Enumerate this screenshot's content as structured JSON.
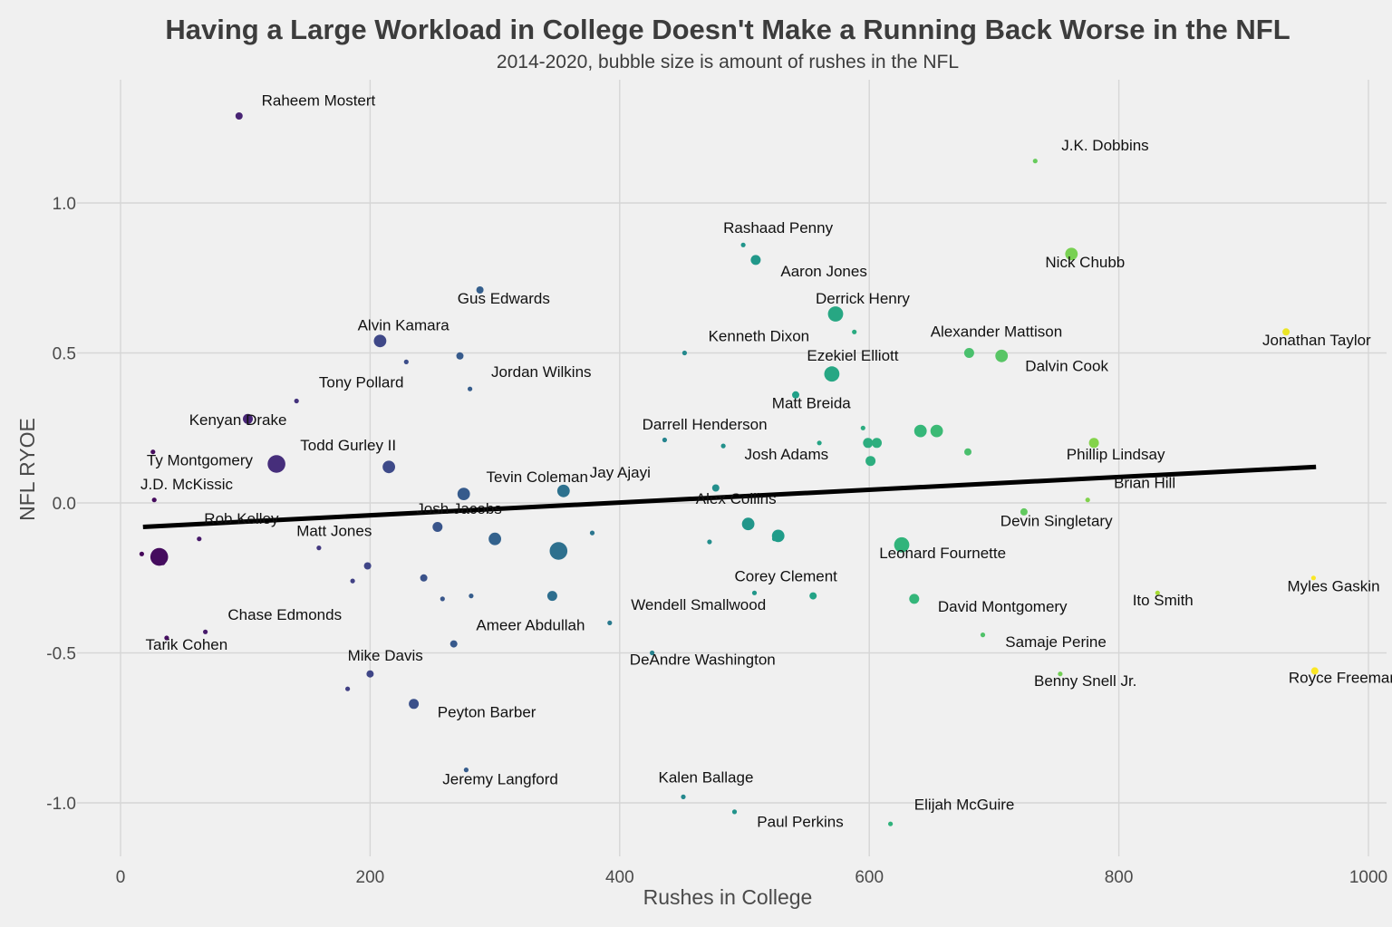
{
  "chart_data": {
    "type": "scatter",
    "title": "Having a Large Workload in College Doesn't Make a Running Back Worse in the NFL",
    "subtitle": "2014-2020, bubble size is amount of rushes in the NFL",
    "xlabel": "Rushes in College",
    "ylabel": "NFL RYOE",
    "xlim": [
      -20,
      1000
    ],
    "ylim": [
      -1.18,
      1.4
    ],
    "x_ticks": [
      0,
      200,
      400,
      600,
      800,
      1000
    ],
    "x_tick_labels": [
      "0",
      "200",
      "400",
      "600",
      "800",
      "1000"
    ],
    "y_ticks": [
      -1.0,
      -0.5,
      0.0,
      0.5,
      1.0
    ],
    "y_tick_labels": [
      "-1.0",
      "-0.5",
      "0.0",
      "0.5",
      "1.0"
    ],
    "grid": true,
    "color_scale": "viridis (by rushes in college)",
    "trend_line": {
      "x": [
        18,
        958
      ],
      "y": [
        -0.08,
        0.12
      ]
    },
    "points": [
      {
        "name": "Raheem Mostert",
        "x": 95,
        "y": 1.29,
        "size": 2
      },
      {
        "name": "J.K. Dobbins",
        "x": 733,
        "y": 1.14,
        "size": 1
      },
      {
        "name": "Rashaad Penny",
        "x": 499,
        "y": 0.86,
        "size": 1
      },
      {
        "name": "Aaron Jones",
        "x": 509,
        "y": 0.81,
        "size": 3
      },
      {
        "name": "Nick Chubb",
        "x": 762,
        "y": 0.83,
        "size": 4
      },
      {
        "name": "",
        "x": 288,
        "y": 0.71,
        "size": 2
      },
      {
        "name": "Derrick Henry",
        "x": 573,
        "y": 0.63,
        "size": 5
      },
      {
        "name": "Alexander Mattison",
        "x": 588,
        "y": 0.57,
        "size": 1
      },
      {
        "name": "Jonathan Taylor",
        "x": 934,
        "y": 0.57,
        "size": 2
      },
      {
        "name": "Alvin Kamara",
        "x": 208,
        "y": 0.54,
        "size": 4
      },
      {
        "name": "Kenneth Dixon",
        "x": 452,
        "y": 0.5,
        "size": 1
      },
      {
        "name": "",
        "x": 680,
        "y": 0.5,
        "size": 3
      },
      {
        "name": "Dalvin Cook",
        "x": 706,
        "y": 0.49,
        "size": 4
      },
      {
        "name": "",
        "x": 272,
        "y": 0.49,
        "size": 2
      },
      {
        "name": "",
        "x": 229,
        "y": 0.47,
        "size": 1
      },
      {
        "name": "Ezekiel Elliott",
        "x": 570,
        "y": 0.43,
        "size": 5
      },
      {
        "name": "Jordan Wilkins",
        "x": 280,
        "y": 0.38,
        "size": 1
      },
      {
        "name": "Matt Breida",
        "x": 541,
        "y": 0.36,
        "size": 2
      },
      {
        "name": "Tony Pollard",
        "x": 141,
        "y": 0.34,
        "size": 1
      },
      {
        "name": "Kenyan Drake",
        "x": 102,
        "y": 0.28,
        "size": 3
      },
      {
        "name": "",
        "x": 595,
        "y": 0.25,
        "size": 1
      },
      {
        "name": "",
        "x": 641,
        "y": 0.24,
        "size": 4
      },
      {
        "name": "",
        "x": 654,
        "y": 0.24,
        "size": 4
      },
      {
        "name": "Darrell Henderson",
        "x": 436,
        "y": 0.21,
        "size": 1
      },
      {
        "name": "",
        "x": 560,
        "y": 0.2,
        "size": 1
      },
      {
        "name": "",
        "x": 599,
        "y": 0.2,
        "size": 3
      },
      {
        "name": "",
        "x": 606,
        "y": 0.2,
        "size": 3
      },
      {
        "name": "Phillip Lindsay",
        "x": 780,
        "y": 0.2,
        "size": 3
      },
      {
        "name": "Josh Adams",
        "x": 483,
        "y": 0.19,
        "size": 1
      },
      {
        "name": "Ty Montgomery",
        "x": 26,
        "y": 0.17,
        "size": 1
      },
      {
        "name": "",
        "x": 679,
        "y": 0.17,
        "size": 2
      },
      {
        "name": "Todd Gurley II",
        "x": 125,
        "y": 0.13,
        "size": 6
      },
      {
        "name": "",
        "x": 601,
        "y": 0.14,
        "size": 3
      },
      {
        "name": "",
        "x": 215,
        "y": 0.12,
        "size": 4
      },
      {
        "name": "",
        "x": 477,
        "y": 0.05,
        "size": 2
      },
      {
        "name": "Jay Ajayi",
        "x": 355,
        "y": 0.04,
        "size": 4
      },
      {
        "name": "Tevin Coleman",
        "x": 275,
        "y": 0.03,
        "size": 4
      },
      {
        "name": "J.D. McKissic",
        "x": 27,
        "y": 0.01,
        "size": 1
      },
      {
        "name": "Brian Hill",
        "x": 775,
        "y": 0.01,
        "size": 1
      },
      {
        "name": "",
        "x": 724,
        "y": -0.03,
        "size": 2
      },
      {
        "name": "Alex Collins",
        "x": 503,
        "y": -0.07,
        "size": 4
      },
      {
        "name": "Josh Jacobs",
        "x": 254,
        "y": -0.08,
        "size": 3
      },
      {
        "name": "Devin Singletary",
        "x": 527,
        "y": -0.11,
        "size": 4
      },
      {
        "name": "",
        "x": 378,
        "y": -0.1,
        "size": 1
      },
      {
        "name": "Rob Kelley",
        "x": 63,
        "y": -0.12,
        "size": 1
      },
      {
        "name": "",
        "x": 300,
        "y": -0.12,
        "size": 4
      },
      {
        "name": "",
        "x": 524,
        "y": -0.12,
        "size": 1
      },
      {
        "name": "",
        "x": 472,
        "y": -0.13,
        "size": 1
      },
      {
        "name": "Leonard Fournette",
        "x": 626,
        "y": -0.14,
        "size": 5
      },
      {
        "name": "Matt Jones",
        "x": 159,
        "y": -0.15,
        "size": 1
      },
      {
        "name": "",
        "x": 351,
        "y": -0.16,
        "size": 6
      },
      {
        "name": "",
        "x": 17,
        "y": -0.17,
        "size": 1
      },
      {
        "name": "",
        "x": 31,
        "y": -0.18,
        "size": 6
      },
      {
        "name": "",
        "x": 34,
        "y": -0.2,
        "size": 1
      },
      {
        "name": "",
        "x": 198,
        "y": -0.21,
        "size": 2
      },
      {
        "name": "",
        "x": 243,
        "y": -0.25,
        "size": 2
      },
      {
        "name": "",
        "x": 186,
        "y": -0.26,
        "size": 1
      },
      {
        "name": "Corey Clement",
        "x": 508,
        "y": -0.3,
        "size": 1
      },
      {
        "name": "Myles Gaskin",
        "x": 956,
        "y": -0.25,
        "size": 1
      },
      {
        "name": "",
        "x": 281,
        "y": -0.31,
        "size": 1
      },
      {
        "name": "",
        "x": 346,
        "y": -0.31,
        "size": 3
      },
      {
        "name": "",
        "x": 555,
        "y": -0.31,
        "size": 2
      },
      {
        "name": "Ito Smith",
        "x": 831,
        "y": -0.3,
        "size": 1
      },
      {
        "name": "",
        "x": 258,
        "y": -0.32,
        "size": 1
      },
      {
        "name": "David Montgomery",
        "x": 636,
        "y": -0.32,
        "size": 3
      },
      {
        "name": "Wendell Smallwood",
        "x": 392,
        "y": -0.4,
        "size": 1
      },
      {
        "name": "",
        "x": 68,
        "y": -0.43,
        "size": 1
      },
      {
        "name": "Chase Edmonds",
        "x": 37,
        "y": -0.45,
        "size": 1
      },
      {
        "name": "Samaje Perine",
        "x": 691,
        "y": -0.44,
        "size": 1
      },
      {
        "name": "Ameer Abdullah",
        "x": 267,
        "y": -0.47,
        "size": 2
      },
      {
        "name": "DeAndre Washington",
        "x": 426,
        "y": -0.5,
        "size": 1
      },
      {
        "name": "Benny Snell Jr.",
        "x": 753,
        "y": -0.57,
        "size": 1
      },
      {
        "name": "Mike Davis",
        "x": 200,
        "y": -0.57,
        "size": 2
      },
      {
        "name": "Royce Freeman",
        "x": 957,
        "y": -0.56,
        "size": 2
      },
      {
        "name": "",
        "x": 182,
        "y": -0.62,
        "size": 1
      },
      {
        "name": "Peyton Barber",
        "x": 235,
        "y": -0.67,
        "size": 3
      },
      {
        "name": "Jeremy Langford",
        "x": 277,
        "y": -0.89,
        "size": 1
      },
      {
        "name": "Kalen Ballage",
        "x": 451,
        "y": -0.98,
        "size": 1
      },
      {
        "name": "Paul Perkins",
        "x": 492,
        "y": -1.03,
        "size": 1
      },
      {
        "name": "Elijah McGuire",
        "x": 617,
        "y": -1.07,
        "size": 1
      }
    ],
    "labels": [
      {
        "text": "Raheem Mostert",
        "x": 113,
        "y": 1.325
      },
      {
        "text": "J.K. Dobbins",
        "x": 754,
        "y": 1.175
      },
      {
        "text": "Rashaad Penny",
        "x": 483,
        "y": 0.9
      },
      {
        "text": "Aaron Jones",
        "x": 529,
        "y": 0.755
      },
      {
        "text": "Nick Chubb",
        "x": 741,
        "y": 0.785
      },
      {
        "text": "Gus Edwards",
        "x": 270,
        "y": 0.665
      },
      {
        "text": "Derrick Henry",
        "x": 557,
        "y": 0.665
      },
      {
        "text": "Alexander Mattison",
        "x": 649,
        "y": 0.555
      },
      {
        "text": "Jonathan Taylor",
        "x": 915,
        "y": 0.525
      },
      {
        "text": "Alvin Kamara",
        "x": 190,
        "y": 0.575
      },
      {
        "text": "Kenneth Dixon",
        "x": 471,
        "y": 0.54
      },
      {
        "text": "Dalvin Cook",
        "x": 725,
        "y": 0.44
      },
      {
        "text": "Ezekiel Elliott",
        "x": 550,
        "y": 0.475
      },
      {
        "text": "Jordan Wilkins",
        "x": 297,
        "y": 0.42
      },
      {
        "text": "Matt Breida",
        "x": 522,
        "y": 0.315
      },
      {
        "text": "Tony Pollard",
        "x": 159,
        "y": 0.385
      },
      {
        "text": "Kenyan Drake",
        "x": 55,
        "y": 0.26
      },
      {
        "text": "Darrell Henderson",
        "x": 418,
        "y": 0.245
      },
      {
        "text": "Phillip Lindsay",
        "x": 758,
        "y": 0.145
      },
      {
        "text": "Josh Adams",
        "x": 500,
        "y": 0.145
      },
      {
        "text": "Ty Montgomery",
        "x": 21,
        "y": 0.125
      },
      {
        "text": "Todd Gurley II",
        "x": 144,
        "y": 0.175
      },
      {
        "text": "Jay Ajayi",
        "x": 376,
        "y": 0.085
      },
      {
        "text": "Tevin Coleman",
        "x": 293,
        "y": 0.07
      },
      {
        "text": "J.D. McKissic",
        "x": 16,
        "y": 0.045
      },
      {
        "text": "Brian Hill",
        "x": 796,
        "y": 0.05
      },
      {
        "text": "Alex Collins",
        "x": 461,
        "y": -0.003
      },
      {
        "text": "Josh Jacobs",
        "x": 237,
        "y": -0.037
      },
      {
        "text": "Devin Singletary",
        "x": 705,
        "y": -0.077
      },
      {
        "text": "Rob Kelley",
        "x": 67,
        "y": -0.07
      },
      {
        "text": "Matt Jones",
        "x": 141,
        "y": -0.11
      },
      {
        "text": "Leonard Fournette",
        "x": 608,
        "y": -0.185
      },
      {
        "text": "Corey Clement",
        "x": 492,
        "y": -0.262
      },
      {
        "text": "Myles Gaskin",
        "x": 935,
        "y": -0.295
      },
      {
        "text": "Ito Smith",
        "x": 811,
        "y": -0.342
      },
      {
        "text": "David Montgomery",
        "x": 655,
        "y": -0.362
      },
      {
        "text": "Wendell Smallwood",
        "x": 409,
        "y": -0.356
      },
      {
        "text": "Chase Edmonds",
        "x": 86,
        "y": -0.39
      },
      {
        "text": "Tarik Cohen",
        "x": 20,
        "y": -0.49
      },
      {
        "text": "Samaje Perine",
        "x": 709,
        "y": -0.48
      },
      {
        "text": "Ameer Abdullah",
        "x": 285,
        "y": -0.425
      },
      {
        "text": "DeAndre Washington",
        "x": 408,
        "y": -0.54
      },
      {
        "text": "Benny Snell Jr.",
        "x": 732,
        "y": -0.61
      },
      {
        "text": "Mike Davis",
        "x": 182,
        "y": -0.525
      },
      {
        "text": "Royce Freeman",
        "x": 936,
        "y": -0.6
      },
      {
        "text": "Peyton Barber",
        "x": 254,
        "y": -0.715
      },
      {
        "text": "Jeremy Langford",
        "x": 258,
        "y": -0.938
      },
      {
        "text": "Kalen Ballage",
        "x": 431,
        "y": -0.932
      },
      {
        "text": "Paul Perkins",
        "x": 510,
        "y": -1.08
      },
      {
        "text": "Elijah McGuire",
        "x": 636,
        "y": -1.023
      }
    ]
  }
}
